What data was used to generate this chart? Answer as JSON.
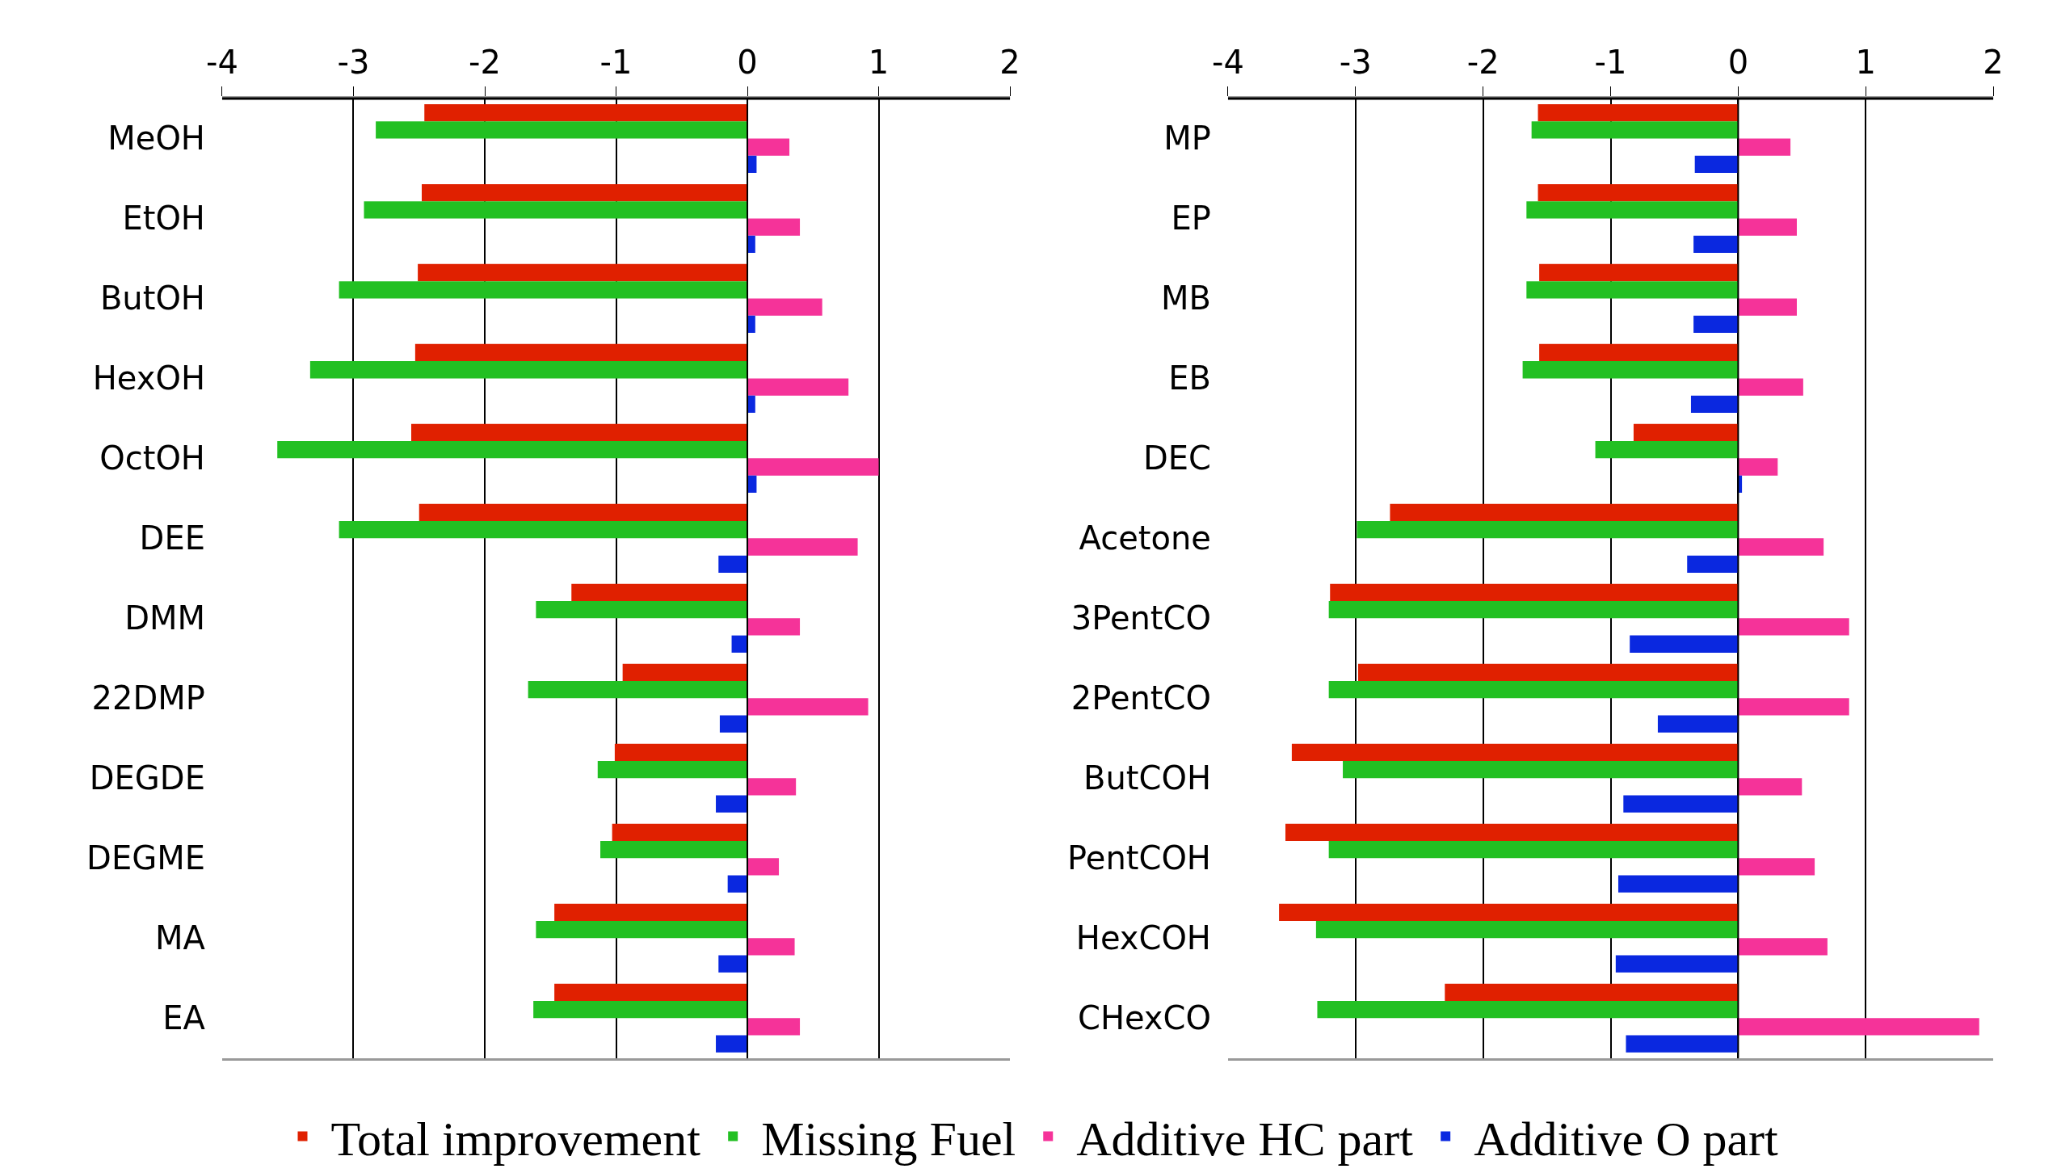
{
  "chart_data": [
    {
      "type": "bar",
      "orientation": "horizontal",
      "categories": [
        "MeOH",
        "EtOH",
        "ButOH",
        "HexOH",
        "OctOH",
        "DEE",
        "DMM",
        "22DMP",
        "DEGDE",
        "DEGME",
        "MA",
        "EA"
      ],
      "series": [
        {
          "name": "Total improvement",
          "color": "#e02000",
          "values": [
            -2.46,
            -2.48,
            -2.51,
            -2.53,
            -2.56,
            -2.5,
            -1.34,
            -0.95,
            -1.01,
            -1.03,
            -1.47,
            -1.47
          ]
        },
        {
          "name": "Missing Fuel",
          "color": "#22c022",
          "values": [
            -2.83,
            -2.92,
            -3.11,
            -3.33,
            -3.58,
            -3.11,
            -1.61,
            -1.67,
            -1.14,
            -1.12,
            -1.61,
            -1.63
          ]
        },
        {
          "name": "Additive HC part",
          "color": "#f53399",
          "values": [
            0.32,
            0.4,
            0.57,
            0.77,
            1.0,
            0.84,
            0.4,
            0.92,
            0.37,
            0.24,
            0.36,
            0.4
          ]
        },
        {
          "name": "Additive O part",
          "color": "#0a28e0",
          "values": [
            0.07,
            0.06,
            0.06,
            0.06,
            0.07,
            -0.22,
            -0.12,
            -0.21,
            -0.24,
            -0.15,
            -0.22,
            -0.24
          ]
        }
      ],
      "xlim": [
        -4,
        2
      ],
      "xticks": [
        -4,
        -3,
        -2,
        -1,
        0,
        1,
        2
      ],
      "grid": "x",
      "legend": "bottom"
    },
    {
      "type": "bar",
      "orientation": "horizontal",
      "categories": [
        "MP",
        "EP",
        "MB",
        "EB",
        "DEC",
        "Acetone",
        "3PentCO",
        "2PentCO",
        "ButCOH",
        "PentCOH",
        "HexCOH",
        "CHexCO"
      ],
      "series": [
        {
          "color": "#e02000",
          "values": [
            -1.57,
            -1.57,
            -1.56,
            -1.56,
            -0.82,
            -2.73,
            -3.2,
            -2.98,
            -3.5,
            -3.55,
            -3.6,
            -2.3
          ]
        },
        {
          "color": "#22c022",
          "values": [
            -1.62,
            -1.66,
            -1.66,
            -1.69,
            -1.12,
            -2.99,
            -3.21,
            -3.21,
            -3.1,
            -3.21,
            -3.31,
            -3.3
          ]
        },
        {
          "color": "#f53399",
          "values": [
            0.41,
            0.46,
            0.46,
            0.51,
            0.31,
            0.67,
            0.87,
            0.87,
            0.5,
            0.6,
            0.7,
            1.89
          ]
        },
        {
          "color": "#0a28e0",
          "values": [
            -0.34,
            -0.35,
            -0.35,
            -0.37,
            0.03,
            -0.4,
            -0.85,
            -0.63,
            -0.9,
            -0.94,
            -0.96,
            -0.88
          ]
        }
      ],
      "xlim": [
        -4,
        2
      ],
      "xticks": [
        -4,
        -3,
        -2,
        -1,
        0,
        1,
        2
      ],
      "grid": "x"
    }
  ]
}
